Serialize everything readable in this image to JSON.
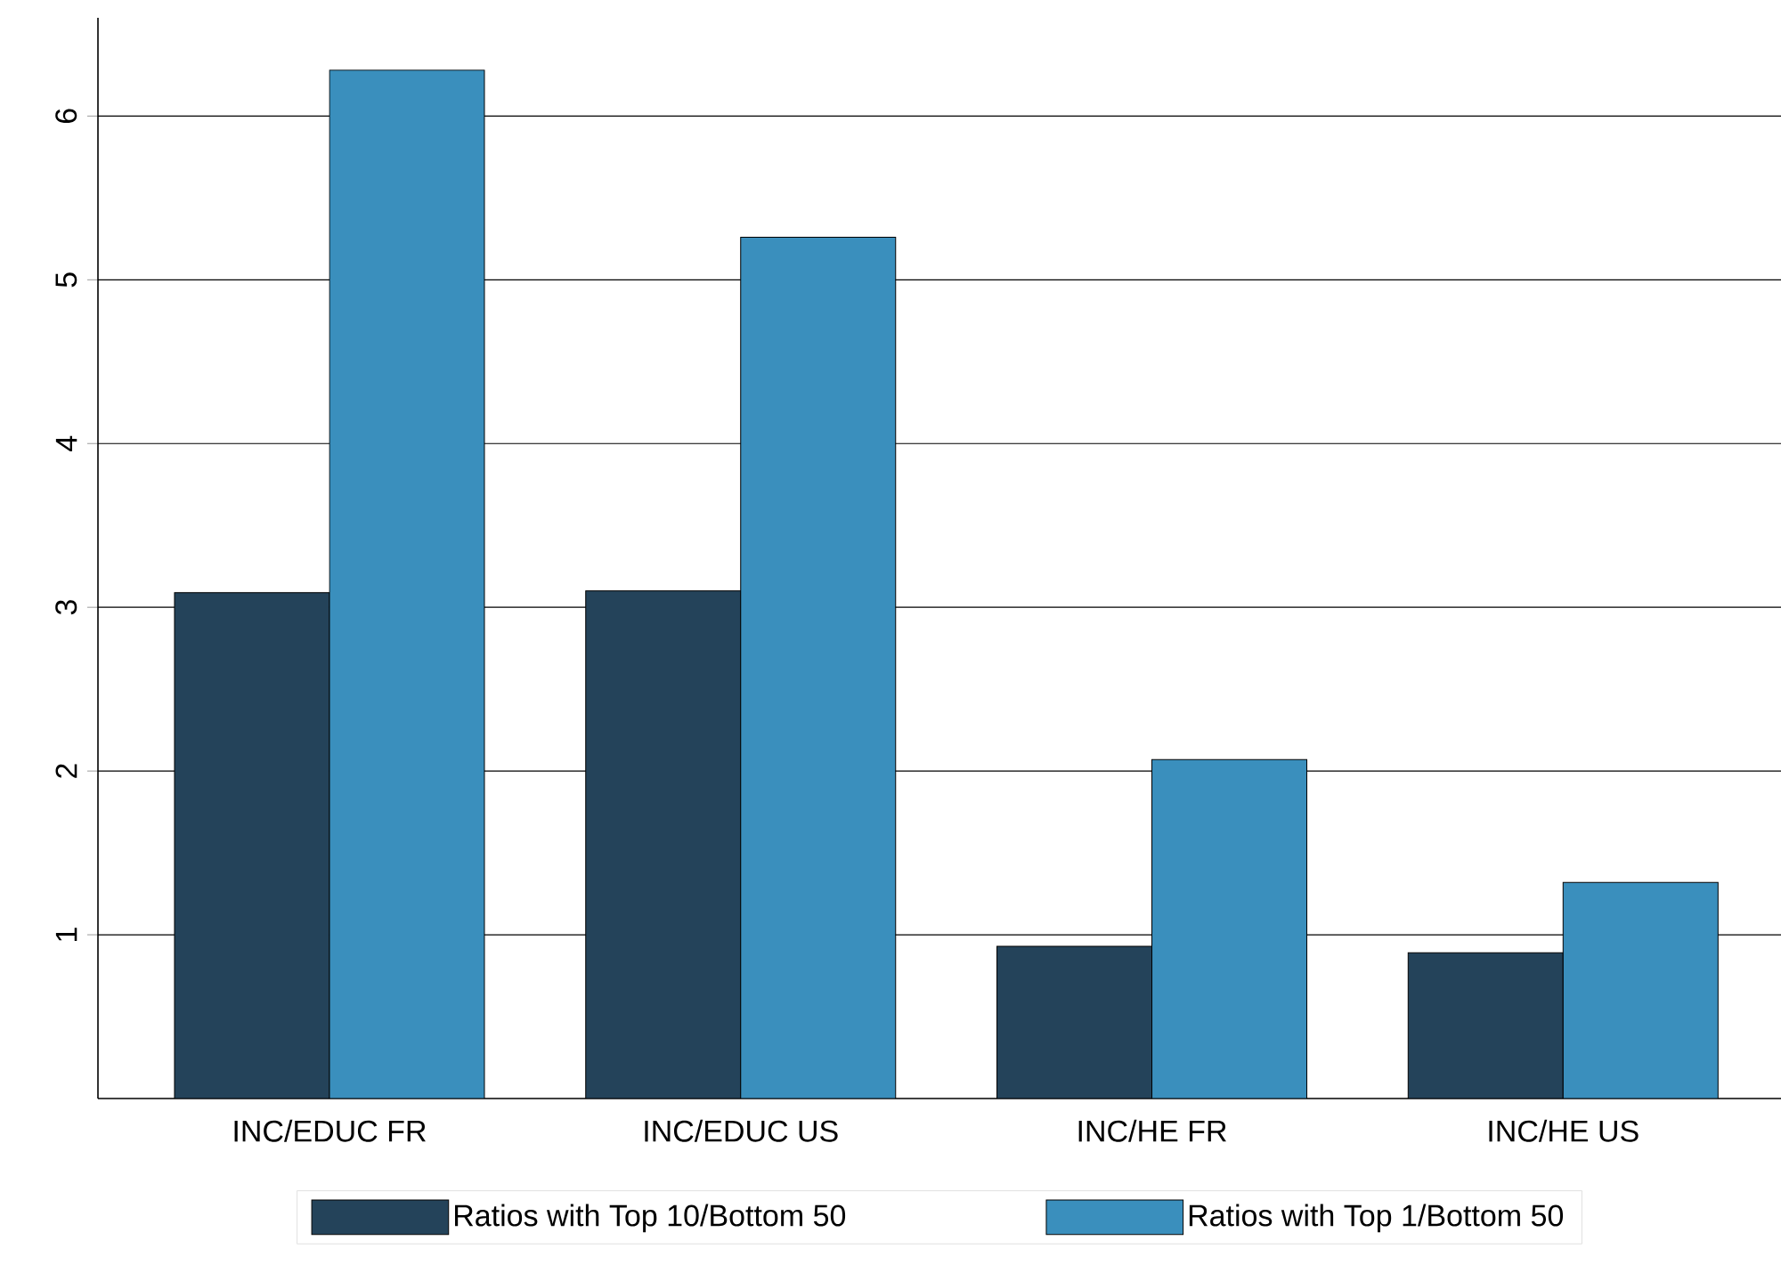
{
  "chart_data": {
    "type": "bar",
    "categories": [
      "INC/EDUC FR",
      "INC/EDUC US",
      "INC/HE FR",
      "INC/HE US"
    ],
    "series": [
      {
        "name": "Ratios with Top 10/Bottom 50",
        "color": "#24435a",
        "values": [
          3.09,
          3.1,
          0.93,
          0.89
        ]
      },
      {
        "name": "Ratios with Top 1/Bottom 50",
        "color": "#3a8fbd",
        "values": [
          6.28,
          5.26,
          2.07,
          1.32
        ]
      }
    ],
    "ylim": [
      0,
      6.6
    ],
    "yticks": [
      1,
      2,
      3,
      4,
      5,
      6
    ],
    "grid": "y",
    "legend": "bottom"
  }
}
